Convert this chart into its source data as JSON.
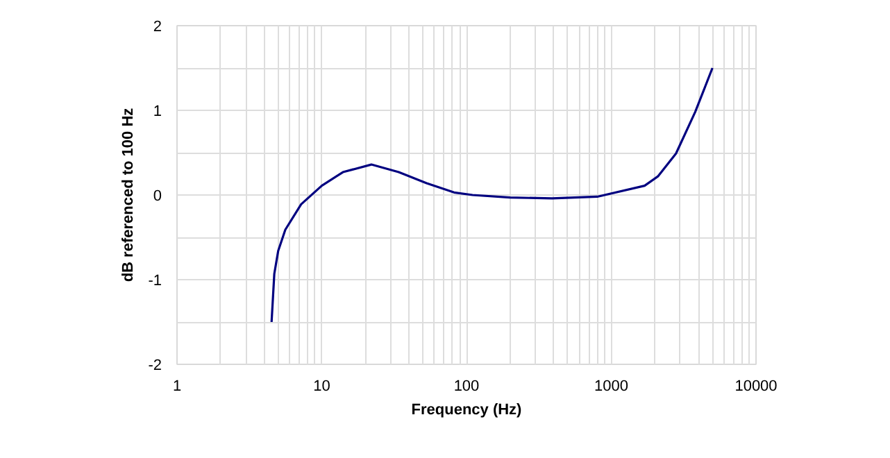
{
  "chart_data": {
    "type": "line",
    "xlabel": "Frequency (Hz)",
    "ylabel": "dB referenced to 100 Hz",
    "log": "x",
    "grid": true,
    "marker": "none",
    "line_style": "solid",
    "xlim": [
      1,
      10000
    ],
    "ylim": [
      -2,
      2
    ],
    "xticks": [
      1,
      {
        "value": 2,
        "label": null
      },
      {
        "value": 3,
        "label": null
      },
      {
        "value": 4,
        "label": null
      },
      {
        "value": 5,
        "label": null
      },
      {
        "value": 6,
        "label": null
      },
      {
        "value": 7,
        "label": null
      },
      {
        "value": 8,
        "label": null
      },
      {
        "value": 9,
        "label": null
      },
      10,
      {
        "value": 20,
        "label": null
      },
      {
        "value": 30,
        "label": null
      },
      {
        "value": 40,
        "label": null
      },
      {
        "value": 50,
        "label": null
      },
      {
        "value": 60,
        "label": null
      },
      {
        "value": 70,
        "label": null
      },
      {
        "value": 80,
        "label": null
      },
      {
        "value": 90,
        "label": null
      },
      100,
      {
        "value": 200,
        "label": null
      },
      {
        "value": 300,
        "label": null
      },
      {
        "value": 400,
        "label": null
      },
      {
        "value": 500,
        "label": null
      },
      {
        "value": 600,
        "label": null
      },
      {
        "value": 700,
        "label": null
      },
      {
        "value": 800,
        "label": null
      },
      {
        "value": 900,
        "label": null
      },
      1000,
      {
        "value": 2000,
        "label": null
      },
      {
        "value": 3000,
        "label": null
      },
      {
        "value": 4000,
        "label": null
      },
      {
        "value": 5000,
        "label": null
      },
      {
        "value": 6000,
        "label": null
      },
      {
        "value": 7000,
        "label": null
      },
      {
        "value": 8000,
        "label": null
      },
      {
        "value": 9000,
        "label": null
      },
      10000
    ],
    "yticks": [
      -2,
      {
        "value": -1.5,
        "label": null
      },
      -1,
      {
        "value": -0.5,
        "label": null
      },
      0,
      {
        "value": 0.5,
        "label": null
      },
      1,
      {
        "value": 1.5,
        "label": null
      },
      2
    ],
    "series": [
      {
        "color": "#000080",
        "x": [
          4.5,
          4.7,
          5.0,
          5.6,
          7.2,
          10,
          14,
          22,
          34,
          53,
          82,
          110,
          200,
          390,
          800,
          1700,
          2100,
          2800,
          3800,
          5000
        ],
        "values": [
          -1.5,
          -0.93,
          -0.66,
          -0.41,
          -0.11,
          0.11,
          0.27,
          0.36,
          0.27,
          0.14,
          0.03,
          0.0,
          -0.03,
          -0.04,
          -0.02,
          0.11,
          0.22,
          0.49,
          0.98,
          1.5
        ]
      }
    ]
  }
}
